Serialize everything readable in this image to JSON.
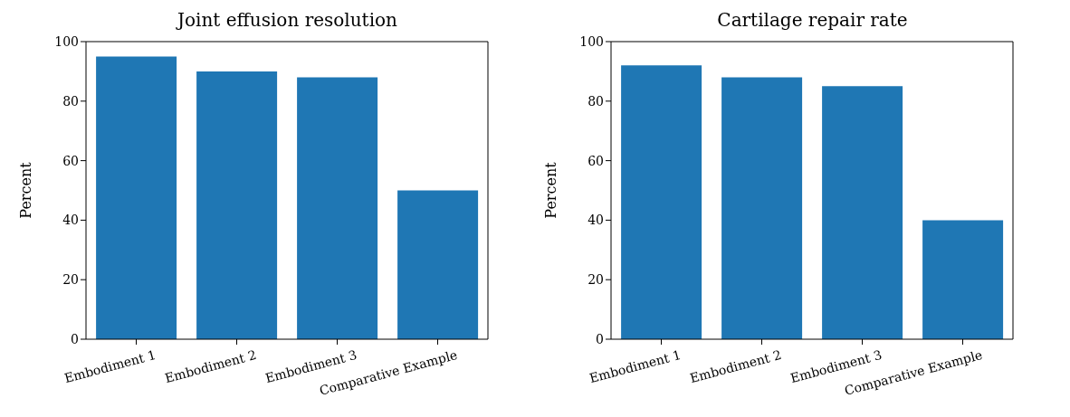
{
  "chart_data": [
    {
      "type": "bar",
      "title": "Joint effusion resolution",
      "ylabel": "Percent",
      "categories": [
        "Embodiment 1",
        "Embodiment 2",
        "Embodiment 3",
        "Comparative Example"
      ],
      "values": [
        95,
        90,
        88,
        50
      ],
      "color": "#1f77b4",
      "ylim": [
        0,
        100
      ],
      "yticks": [
        0,
        20,
        40,
        60,
        80,
        100
      ]
    },
    {
      "type": "bar",
      "title": "Cartilage repair rate",
      "ylabel": "Percent",
      "categories": [
        "Embodiment 1",
        "Embodiment 2",
        "Embodiment 3",
        "Comparative Example"
      ],
      "values": [
        92,
        88,
        85,
        40
      ],
      "color": "#1f77b4",
      "ylim": [
        0,
        100
      ],
      "yticks": [
        0,
        20,
        40,
        60,
        80,
        100
      ]
    }
  ]
}
